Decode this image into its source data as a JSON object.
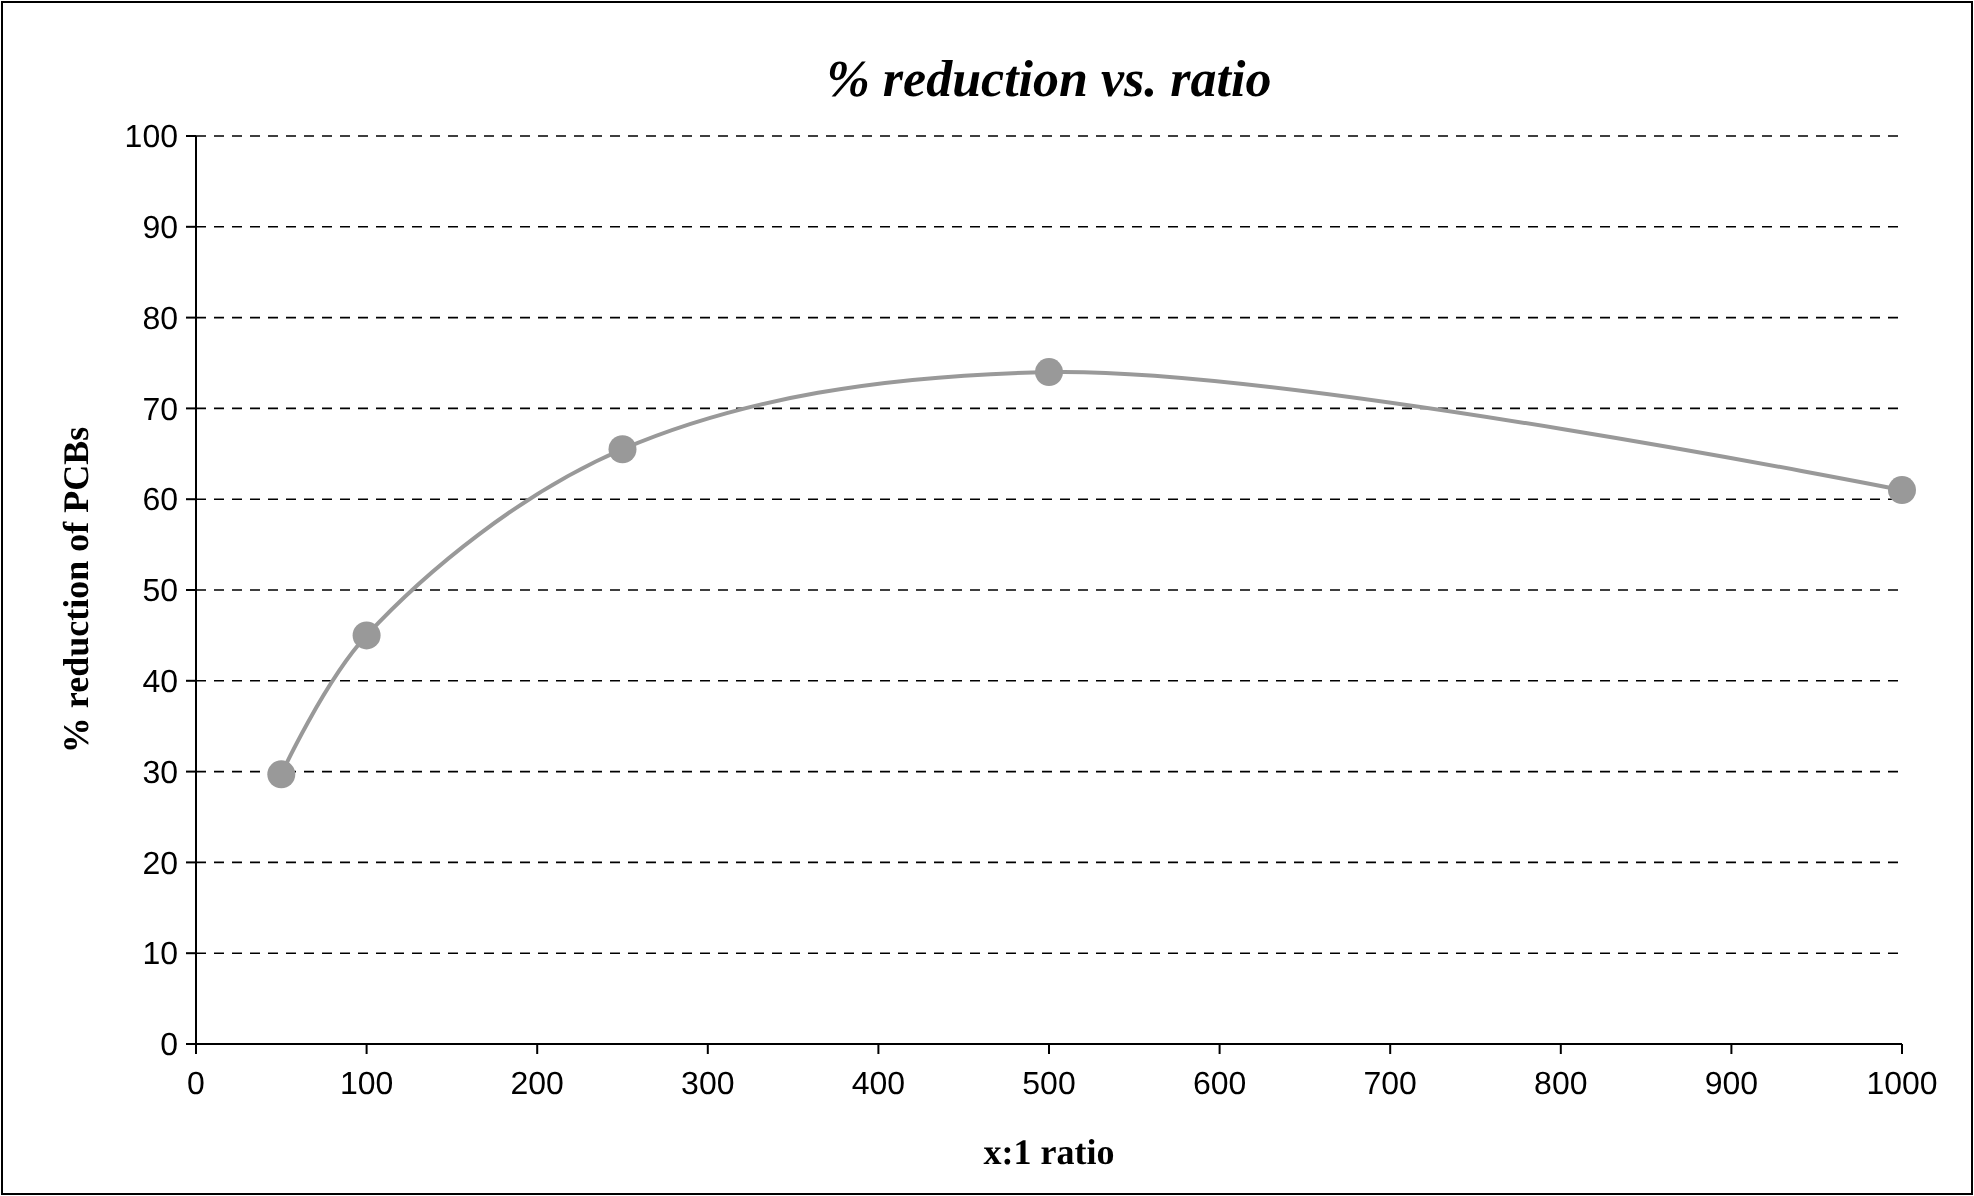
{
  "chart_data": {
    "type": "line",
    "title": "% reduction vs. ratio",
    "xlabel": "x:1 ratio",
    "ylabel": "% reduction of PCBs",
    "xlim": [
      0,
      1000
    ],
    "xticks": [
      0,
      100,
      200,
      300,
      400,
      500,
      600,
      700,
      800,
      900,
      1000
    ],
    "ylim": [
      0,
      100
    ],
    "yticks": [
      0,
      10,
      20,
      30,
      40,
      50,
      60,
      70,
      80,
      90,
      100
    ],
    "grid": "y",
    "marker": "circle",
    "line_style": "solid",
    "series": [
      {
        "color": "#999999",
        "x": [
          50,
          100,
          250,
          500,
          1000
        ],
        "values": [
          29.7,
          45,
          65.5,
          74,
          61
        ]
      }
    ]
  }
}
